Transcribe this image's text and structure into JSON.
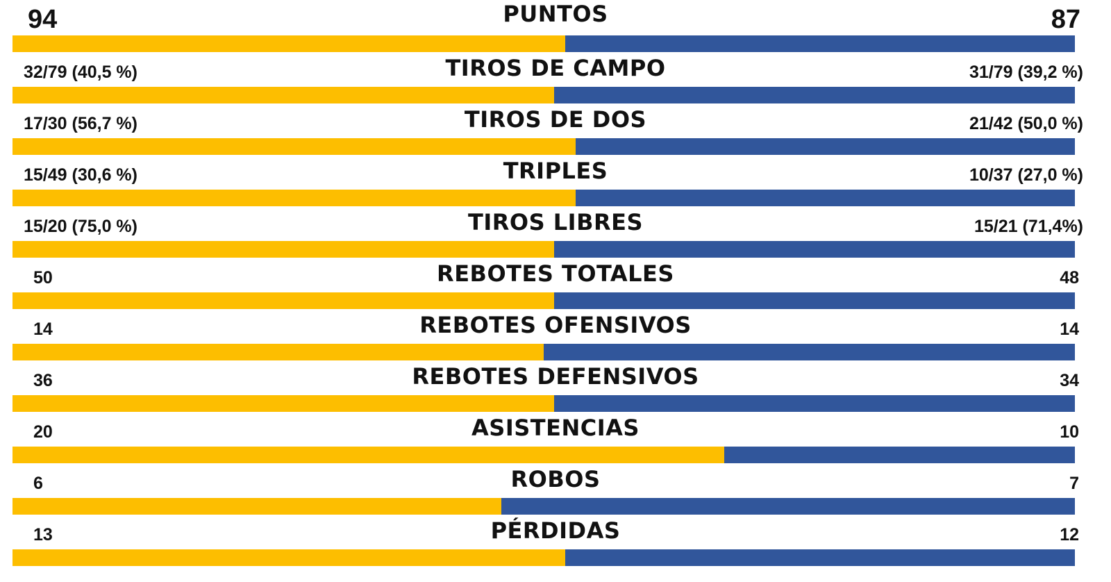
{
  "colors": {
    "team_left": "#FDBE00",
    "team_right": "#31569B",
    "text": "#111111",
    "background": "#FFFFFF"
  },
  "chart_data": {
    "type": "bar",
    "orientation": "horizontal-stacked-comparison",
    "series": [
      {
        "name": "",
        "color": "#FDBE00",
        "values": [
          94,
          32,
          17,
          15,
          15,
          50,
          14,
          36,
          20,
          6,
          13
        ]
      },
      {
        "name": "",
        "color": "#31569B",
        "values": [
          87,
          31,
          21,
          10,
          15,
          48,
          14,
          34,
          10,
          7,
          12
        ]
      }
    ],
    "rows": [
      {
        "label": "PUNTOS",
        "left_text": "94",
        "right_text": "87",
        "left_share": 0.52
      },
      {
        "label": "TIROS DE CAMPO",
        "left_text": "32/79 (40,5 %)",
        "right_text": "31/79 (39,2 %)",
        "left_share": 0.51
      },
      {
        "label": "TIROS DE DOS",
        "left_text": "17/30 (56,7 %)",
        "right_text": "21/42 (50,0 %)",
        "left_share": 0.53
      },
      {
        "label": "TRIPLES",
        "left_text": "15/49 (30,6 %)",
        "right_text": "10/37 (27,0 %)",
        "left_share": 0.53
      },
      {
        "label": "TIROS LIBRES",
        "left_text": "15/20 (75,0 %)",
        "right_text": "15/21 (71,4%)",
        "left_share": 0.51
      },
      {
        "label": "REBOTES TOTALES",
        "left_text": "50",
        "right_text": "48",
        "left_share": 0.51
      },
      {
        "label": "REBOTES OFENSIVOS",
        "left_text": "14",
        "right_text": "14",
        "left_share": 0.5
      },
      {
        "label": "REBOTES DEFENSIVOS",
        "left_text": "36",
        "right_text": "34",
        "left_share": 0.51
      },
      {
        "label": "ASISTENCIAS",
        "left_text": "20",
        "right_text": "10",
        "left_share": 0.67
      },
      {
        "label": "ROBOS",
        "left_text": "6",
        "right_text": "7",
        "left_share": 0.46
      },
      {
        "label": "PÉRDIDAS",
        "left_text": "13",
        "right_text": "12",
        "left_share": 0.52
      }
    ],
    "legend": "none",
    "grid": false
  }
}
